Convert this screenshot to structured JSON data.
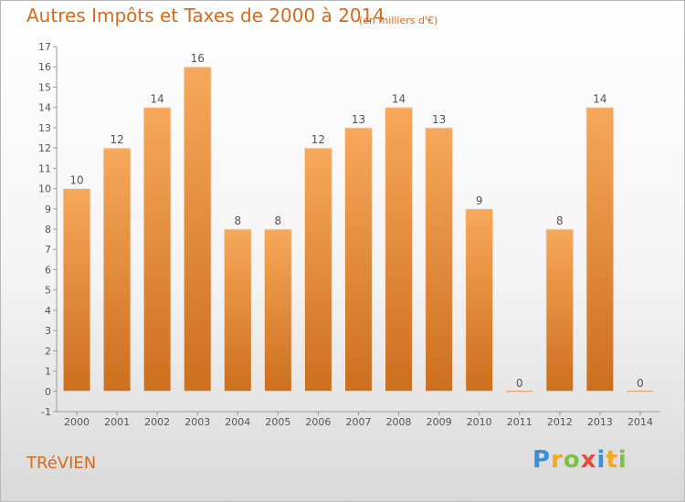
{
  "title": "Autres Impôts et Taxes de 2000 à 2014",
  "subtitle": "(en milliers d'€)",
  "place": "TRéVIEN",
  "logo": {
    "letters": [
      "P",
      "r",
      "o",
      "x",
      "i",
      "t",
      "i"
    ],
    "colors": [
      "#3b8fd4",
      "#f5a623",
      "#7cc242",
      "#e84c3d",
      "#3b8fd4",
      "#f5a623",
      "#7cc242"
    ]
  },
  "colors": {
    "bar_top": "#f7a85a",
    "bar_bottom": "#cc6f1f",
    "axis": "#9a9a9a",
    "text": "#555555",
    "accent": "#d86a1c"
  },
  "chart_data": {
    "type": "bar",
    "categories": [
      "2000",
      "2001",
      "2002",
      "2003",
      "2004",
      "2005",
      "2006",
      "2007",
      "2008",
      "2009",
      "2010",
      "2011",
      "2012",
      "2013",
      "2014"
    ],
    "values": [
      10,
      12,
      14,
      16,
      8,
      8,
      12,
      13,
      14,
      13,
      9,
      0,
      8,
      14,
      0
    ],
    "value_labels": [
      "10",
      "12",
      "14",
      "16",
      "8",
      "8",
      "12",
      "13",
      "14",
      "13",
      "9",
      "0",
      "8",
      "14",
      "0"
    ],
    "yticks": [
      "-1",
      "0",
      "1",
      "2",
      "3",
      "4",
      "5",
      "6",
      "7",
      "8",
      "9",
      "10",
      "11",
      "12",
      "13",
      "14",
      "15",
      "16",
      "17"
    ],
    "ylim": [
      -1,
      17
    ],
    "xlabel": "",
    "ylabel": "",
    "grid": false
  }
}
